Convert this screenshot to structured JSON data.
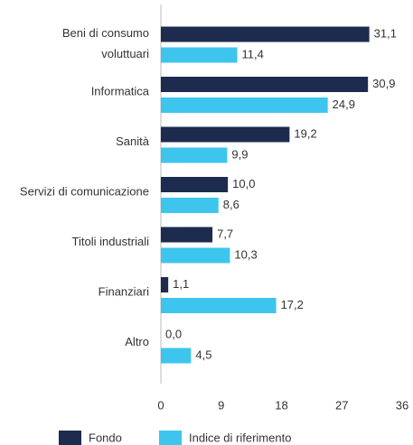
{
  "chart_data": {
    "type": "hbar",
    "categories": [
      "Beni di consumo voluttuari",
      "Informatica",
      "Sanità",
      "Servizi di comunicazione",
      "Titoli industriali",
      "Finanziari",
      "Altro"
    ],
    "series": [
      {
        "name": "Fondo",
        "color": "#1d2b4f",
        "values": [
          31.1,
          30.9,
          19.2,
          10.0,
          7.7,
          1.1,
          0.0
        ],
        "value_labels": [
          "31,1",
          "30,9",
          "19,2",
          "10,0",
          "7,7",
          "1,1",
          "0,0"
        ]
      },
      {
        "name": "Indice di riferimento",
        "color": "#3ec5ee",
        "values": [
          11.4,
          24.9,
          9.9,
          8.6,
          10.3,
          17.2,
          4.5
        ],
        "value_labels": [
          "11,4",
          "24,9",
          "9,9",
          "8,6",
          "10,3",
          "17,2",
          "4,5"
        ]
      }
    ],
    "xlim": [
      0,
      36
    ],
    "xticks": [
      0,
      9,
      18,
      27,
      36
    ],
    "grid": false,
    "legend": "bottom"
  }
}
